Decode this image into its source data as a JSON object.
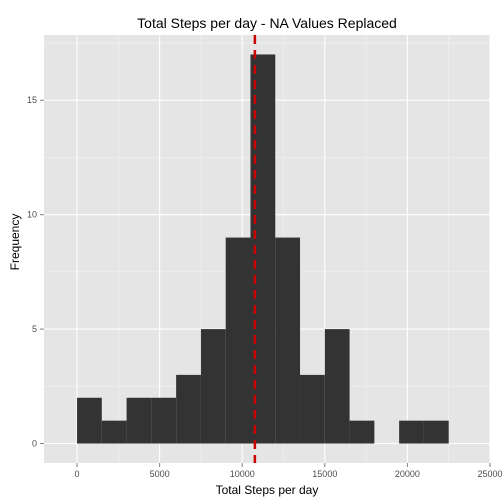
{
  "chart_data": {
    "type": "bar",
    "title": "Total Steps per day - NA Values Replaced",
    "xlabel": "Total Steps per day",
    "ylabel": "Frequency",
    "xlim": [
      -2000,
      25000
    ],
    "ylim": [
      -0.85,
      17.85
    ],
    "x_ticks": [
      0,
      5000,
      10000,
      15000,
      20000,
      25000
    ],
    "y_ticks": [
      0,
      5,
      10,
      15
    ],
    "bin_width": 1500,
    "bins": [
      {
        "start": 0,
        "count": 2
      },
      {
        "start": 1500,
        "count": 1
      },
      {
        "start": 3000,
        "count": 2
      },
      {
        "start": 4500,
        "count": 2
      },
      {
        "start": 6000,
        "count": 3
      },
      {
        "start": 7500,
        "count": 5
      },
      {
        "start": 9000,
        "count": 9
      },
      {
        "start": 10500,
        "count": 17
      },
      {
        "start": 12000,
        "count": 9
      },
      {
        "start": 13500,
        "count": 3
      },
      {
        "start": 15000,
        "count": 5
      },
      {
        "start": 16500,
        "count": 1
      },
      {
        "start": 18000,
        "count": 0
      },
      {
        "start": 19500,
        "count": 1
      },
      {
        "start": 21000,
        "count": 1
      }
    ],
    "mean_line": 10766,
    "colors": {
      "panel": "#e5e5e5",
      "grid_major": "#ffffff",
      "grid_minor": "#f2f2f2",
      "bar": "#333333",
      "mean_line": "#cc0000"
    },
    "grid": true,
    "legend": "none"
  }
}
